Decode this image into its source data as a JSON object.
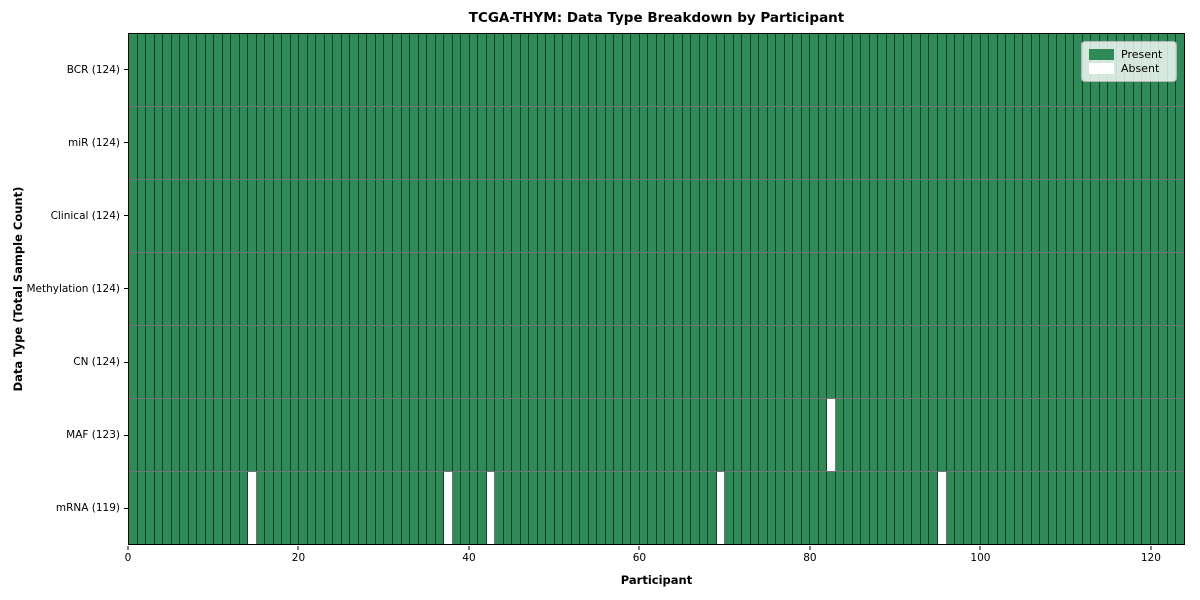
{
  "chart_data": {
    "type": "heatmap",
    "title": "TCGA-THYM: Data Type Breakdown by Participant",
    "xlabel": "Participant",
    "ylabel": "Data Type (Total Sample Count)",
    "xlim": [
      0,
      124
    ],
    "x_ticks": [
      0,
      20,
      40,
      60,
      80,
      100,
      120
    ],
    "n_participants": 124,
    "grid": false,
    "legend_position": "upper right",
    "colors": {
      "present": "#2e8b57",
      "absent": "#ffffff",
      "cell_border": "rgba(0,0,0,0.55)"
    },
    "legend": [
      {
        "label": "Present",
        "color": "#2e8b57"
      },
      {
        "label": "Absent",
        "color": "#ffffff"
      }
    ],
    "rows": [
      {
        "data_type": "BCR",
        "label": "BCR (124)",
        "present_count": 124,
        "absent_participants": []
      },
      {
        "data_type": "miR",
        "label": "miR (124)",
        "present_count": 124,
        "absent_participants": []
      },
      {
        "data_type": "Clinical",
        "label": "Clinical (124)",
        "present_count": 124,
        "absent_participants": []
      },
      {
        "data_type": "Methylation",
        "label": "Methylation (124)",
        "present_count": 124,
        "absent_participants": []
      },
      {
        "data_type": "CN",
        "label": "CN (124)",
        "present_count": 124,
        "absent_participants": []
      },
      {
        "data_type": "MAF",
        "label": "MAF (123)",
        "present_count": 123,
        "absent_participants": [
          82
        ]
      },
      {
        "data_type": "mRNA",
        "label": "mRNA (119)",
        "present_count": 119,
        "absent_participants": [
          14,
          37,
          42,
          69,
          95
        ]
      }
    ]
  }
}
